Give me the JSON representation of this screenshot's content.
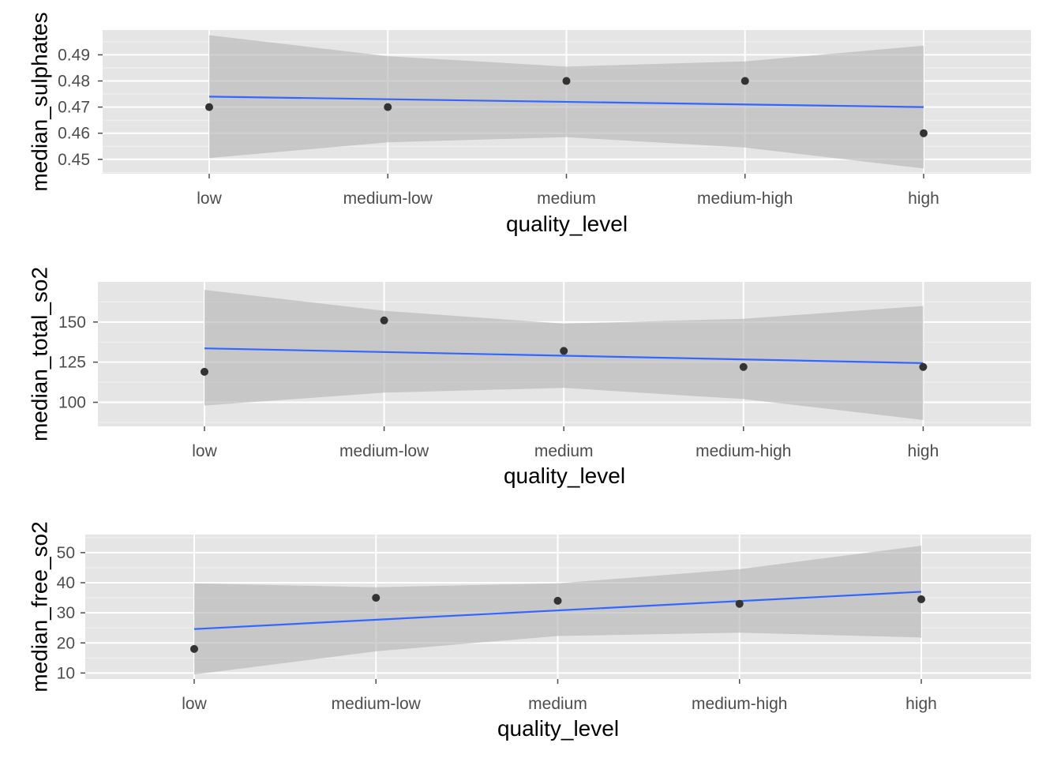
{
  "chart_data": [
    {
      "type": "scatter",
      "xlabel": "quality_level",
      "ylabel": "median_sulphates",
      "categories": [
        "low",
        "medium-low",
        "medium",
        "medium-high",
        "high"
      ],
      "ylim": [
        0.4445,
        0.4995
      ],
      "yticks": [
        0.45,
        0.46,
        0.47,
        0.48,
        0.49
      ],
      "ytick_labels": [
        "0.45",
        "0.46",
        "0.47",
        "0.48",
        "0.49"
      ],
      "points": [
        0.47,
        0.47,
        0.48,
        0.48,
        0.46
      ],
      "trend": {
        "start": 0.474,
        "end": 0.47
      },
      "band_upper": [
        0.4975,
        0.4895,
        0.4855,
        0.4875,
        0.4935
      ],
      "band_lower": [
        0.4505,
        0.4565,
        0.4585,
        0.4545,
        0.4465
      ],
      "grid": true,
      "legend": "none"
    },
    {
      "type": "scatter",
      "xlabel": "quality_level",
      "ylabel": "median_total_so2",
      "categories": [
        "low",
        "medium-low",
        "medium",
        "medium-high",
        "high"
      ],
      "ylim": [
        85,
        175
      ],
      "yticks": [
        100,
        125,
        150
      ],
      "ytick_labels": [
        "100",
        "125",
        "150"
      ],
      "points": [
        119,
        151,
        132,
        122,
        122
      ],
      "trend": {
        "start": 133.6,
        "end": 124.4
      },
      "band_upper": [
        170,
        157,
        149,
        152,
        160
      ],
      "band_lower": [
        98,
        106,
        109,
        102,
        89
      ],
      "grid": true,
      "legend": "none"
    },
    {
      "type": "scatter",
      "xlabel": "quality_level",
      "ylabel": "median_free_so2",
      "categories": [
        "low",
        "medium-low",
        "medium",
        "medium-high",
        "high"
      ],
      "ylim": [
        8,
        56
      ],
      "yticks": [
        10,
        20,
        30,
        40,
        50
      ],
      "ytick_labels": [
        "10",
        "20",
        "30",
        "40",
        "50"
      ],
      "points": [
        18,
        35,
        34,
        33,
        34.5
      ],
      "trend": {
        "start": 24.6,
        "end": 37.0
      },
      "band_upper": [
        39.8,
        38.5,
        39.8,
        44.5,
        52.3
      ],
      "band_lower": [
        9.5,
        17.2,
        22.3,
        23.4,
        21.8
      ],
      "grid": true,
      "legend": "none"
    }
  ],
  "colors": {
    "panel_bg": "#e5e5e5",
    "grid_major": "#ffffff",
    "grid_minor": "#f2f2f2",
    "band": "#b3b3b3",
    "trend_line": "#3366ff",
    "point": "#333333"
  }
}
